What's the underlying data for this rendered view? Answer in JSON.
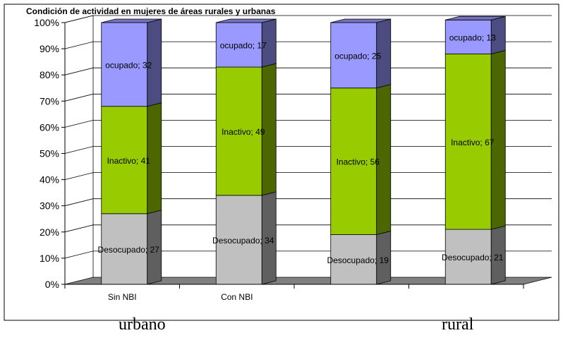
{
  "chart_data": {
    "type": "bar",
    "stacked": true,
    "percent": true,
    "three_d": true,
    "title": "Condición de actividad en mujeres de áreas rurales y urbanas",
    "categories": [
      "Sin NBI",
      "Con NBI",
      "",
      ""
    ],
    "groups": [
      {
        "label": "urbano",
        "categories": [
          0,
          1,
          2
        ]
      },
      {
        "label": "rural",
        "categories": [
          3
        ]
      }
    ],
    "yticks": [
      "0%",
      "10%",
      "20%",
      "30%",
      "40%",
      "50%",
      "60%",
      "70%",
      "80%",
      "90%",
      "100%"
    ],
    "ylim": [
      0,
      100
    ],
    "series": [
      {
        "key": "desocupado",
        "values": [
          27,
          34,
          19,
          21
        ],
        "labels": [
          "Desocupado; 27",
          "Desocupado; 34",
          "Desocupado; 19",
          "Desocupado; 21"
        ],
        "color": "#c0c0c0",
        "side": "#5f5f5f",
        "top": "#8c8c8c"
      },
      {
        "key": "inactivo",
        "values": [
          41,
          49,
          56,
          67
        ],
        "labels": [
          "Inactivo; 41",
          "Inactivo; 49",
          "Inactivo; 56",
          "Inactivo; 67"
        ],
        "color": "#99cc00",
        "side": "#4c6600",
        "top": "#6f9500"
      },
      {
        "key": "ocupado",
        "values": [
          32,
          17,
          25,
          13
        ],
        "labels": [
          "ocupado; 32",
          "ocupado; 17",
          "ocupado; 25",
          "ocupado; 13"
        ],
        "color": "#9999ff",
        "side": "#4c4c80",
        "top": "#7373c0"
      }
    ],
    "grid": true,
    "legend": "none",
    "colors": {
      "floor": "#808080",
      "wall_grid": "#000000"
    }
  }
}
